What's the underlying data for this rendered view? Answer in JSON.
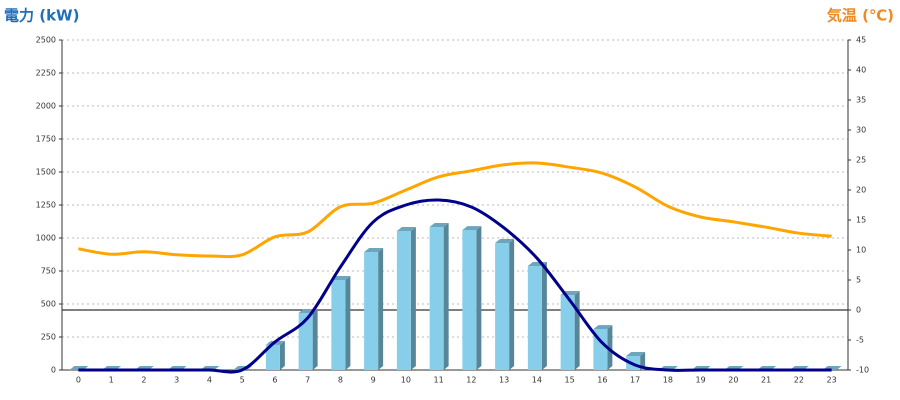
{
  "chart_data": {
    "type": "bar",
    "y_label": "電力 (kW)",
    "y2_label": "気温 (℃)",
    "categories": [
      "0",
      "1",
      "2",
      "3",
      "4",
      "5",
      "6",
      "7",
      "8",
      "9",
      "10",
      "11",
      "12",
      "13",
      "14",
      "15",
      "16",
      "17",
      "18",
      "19",
      "20",
      "21",
      "22",
      "23"
    ],
    "series": [
      {
        "type": "bar",
        "color": "#87ceeb",
        "values": [
          0,
          0,
          0,
          0,
          0,
          0,
          190,
          432,
          682,
          894,
          1053,
          1083,
          1060,
          962,
          788,
          568,
          310,
          106,
          0,
          0,
          0,
          0,
          0,
          0
        ]
      },
      {
        "type": "line",
        "color": "#00008b",
        "values": [
          0,
          0,
          0,
          0,
          0,
          0,
          212,
          394,
          780,
          1121,
          1250,
          1288,
          1235,
          1076,
          848,
          530,
          205,
          38,
          0,
          0,
          0,
          0,
          0,
          0
        ]
      },
      {
        "type": "line",
        "axis": "y2",
        "color": "#ffa500",
        "values": [
          10.2,
          9.3,
          9.7,
          9.2,
          9,
          9.2,
          12.2,
          13,
          17.2,
          17.8,
          20,
          22.2,
          23.2,
          24.2,
          24.5,
          23.8,
          22.8,
          20.5,
          17.3,
          15.5,
          14.7,
          13.8,
          12.8,
          12.3
        ]
      }
    ],
    "ylim": [
      0,
      2500
    ],
    "yticks": [
      0,
      250,
      500,
      750,
      1000,
      1250,
      1500,
      1750,
      2000,
      2250,
      2500
    ],
    "y2lim": [
      -10,
      45
    ],
    "y2ticks": [
      -10,
      -5,
      0,
      5,
      10,
      15,
      20,
      25,
      30,
      35,
      40,
      45
    ],
    "y2_zero_line": true,
    "grid": true
  }
}
